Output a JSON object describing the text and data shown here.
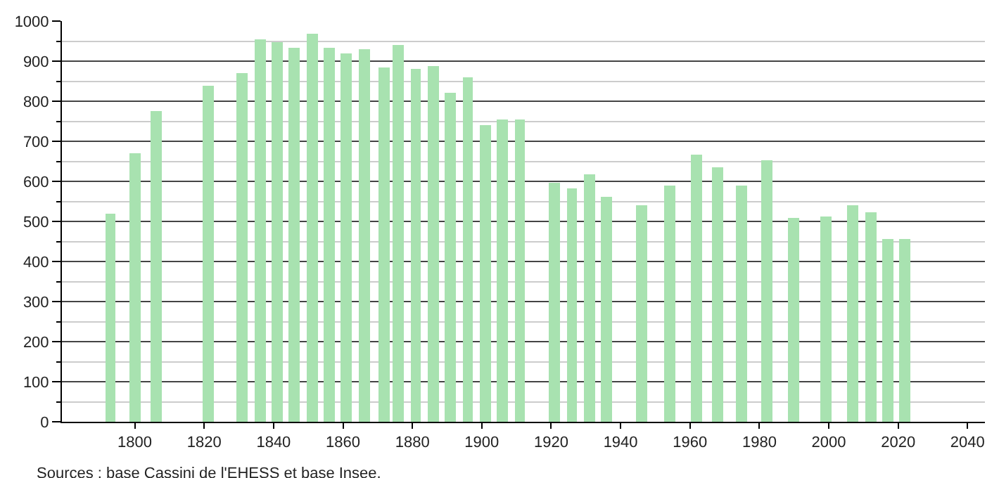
{
  "chart_data": {
    "type": "bar",
    "x": [
      1793,
      1800,
      1806,
      1821,
      1831,
      1836,
      1841,
      1846,
      1851,
      1856,
      1861,
      1866,
      1872,
      1876,
      1881,
      1886,
      1891,
      1896,
      1901,
      1906,
      1911,
      1921,
      1926,
      1931,
      1936,
      1946,
      1954,
      1962,
      1968,
      1975,
      1982,
      1990,
      1999,
      2007,
      2012,
      2017,
      2022
    ],
    "values": [
      521,
      670,
      776,
      839,
      870,
      956,
      948,
      935,
      970,
      935,
      919,
      929,
      885,
      939,
      880,
      887,
      821,
      859,
      742,
      753,
      753,
      597,
      584,
      619,
      563,
      539,
      591,
      667,
      636,
      591,
      653,
      508,
      512,
      539,
      522,
      457,
      456
    ],
    "color": "#a8e2b0",
    "xlim": [
      1779,
      2045
    ],
    "xticks": [
      1800,
      1820,
      1840,
      1860,
      1880,
      1900,
      1920,
      1940,
      1960,
      1980,
      2000,
      2020,
      2040
    ],
    "ylim": [
      0,
      1000
    ],
    "yticks": [
      0,
      100,
      200,
      300,
      400,
      500,
      600,
      700,
      800,
      900,
      1000
    ],
    "grid": "y",
    "legend": false,
    "annotations": [
      "Sources : base Cassini de l'EHESS et base Insee."
    ]
  }
}
